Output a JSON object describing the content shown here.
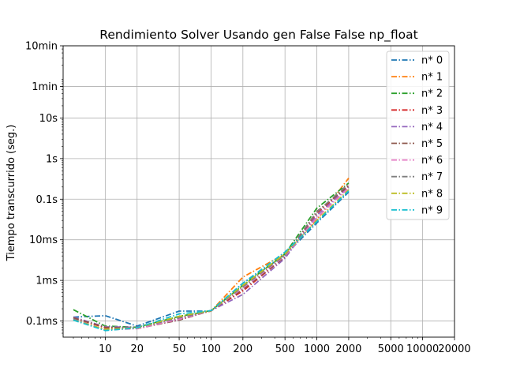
{
  "chart_data": {
    "type": "line",
    "title": "Rendimiento  Solver Usando gen False False np_float",
    "xlabel": "",
    "ylabel": "Tiempo transcurrido (seg.)",
    "x_scale": "log",
    "y_scale": "log",
    "xlim": [
      4,
      20000
    ],
    "ylim": [
      4e-05,
      600
    ],
    "grid": true,
    "legend_position": "top-right",
    "x_ticks": [
      {
        "value": 10,
        "label": "10"
      },
      {
        "value": 20,
        "label": "20"
      },
      {
        "value": 50,
        "label": "50"
      },
      {
        "value": 100,
        "label": "100"
      },
      {
        "value": 200,
        "label": "200"
      },
      {
        "value": 500,
        "label": "500"
      },
      {
        "value": 1000,
        "label": "1000"
      },
      {
        "value": 2000,
        "label": "2000"
      },
      {
        "value": 5000,
        "label": "5000"
      },
      {
        "value": 10000,
        "label": "10000"
      },
      {
        "value": 20000,
        "label": "20000"
      }
    ],
    "y_ticks": [
      {
        "value": 0.0001,
        "label": "0.1ms"
      },
      {
        "value": 0.001,
        "label": "1ms"
      },
      {
        "value": 0.01,
        "label": "10ms"
      },
      {
        "value": 0.1,
        "label": "0.1s"
      },
      {
        "value": 1,
        "label": "1s"
      },
      {
        "value": 10,
        "label": "10s"
      },
      {
        "value": 60,
        "label": "1min"
      },
      {
        "value": 600,
        "label": "10min"
      }
    ],
    "x": [
      5,
      10,
      20,
      50,
      100,
      200,
      500,
      1000,
      2000
    ],
    "series": [
      {
        "name": "n* 0",
        "color": "#1f77b4",
        "values": [
          0.000125,
          0.000135,
          7.5e-05,
          0.000175,
          0.000175,
          0.00085,
          0.0042,
          0.026,
          0.15
        ]
      },
      {
        "name": "n* 1",
        "color": "#ff7f0e",
        "values": [
          0.00012,
          6.8e-05,
          6.8e-05,
          0.00012,
          0.000175,
          0.0012,
          0.0045,
          0.031,
          0.33
        ]
      },
      {
        "name": "n* 2",
        "color": "#2ca02c",
        "values": [
          0.00019,
          7.5e-05,
          7e-05,
          0.00013,
          0.00018,
          0.00075,
          0.0045,
          0.06,
          0.25
        ]
      },
      {
        "name": "n* 3",
        "color": "#d62728",
        "values": [
          0.00012,
          6.8e-05,
          6.8e-05,
          0.00011,
          0.00018,
          0.00055,
          0.0038,
          0.045,
          0.22
        ]
      },
      {
        "name": "n* 4",
        "color": "#9467bd",
        "values": [
          0.000125,
          7.2e-05,
          7e-05,
          0.00011,
          0.00018,
          0.00045,
          0.0035,
          0.04,
          0.2
        ]
      },
      {
        "name": "n* 5",
        "color": "#8c564b",
        "values": [
          0.00012,
          7e-05,
          6.5e-05,
          0.000105,
          0.00018,
          0.0006,
          0.0038,
          0.05,
          0.21
        ]
      },
      {
        "name": "n* 6",
        "color": "#e377c2",
        "values": [
          0.00011,
          6e-05,
          6.5e-05,
          0.00011,
          0.00018,
          0.00065,
          0.004,
          0.035,
          0.19
        ]
      },
      {
        "name": "n* 7",
        "color": "#7f7f7f",
        "values": [
          0.00011,
          6e-05,
          6.8e-05,
          0.00012,
          0.00018,
          0.0007,
          0.0042,
          0.048,
          0.24
        ]
      },
      {
        "name": "n* 8",
        "color": "#bcbd22",
        "values": [
          0.000105,
          6.2e-05,
          6.8e-05,
          0.00013,
          0.00018,
          0.00075,
          0.0045,
          0.03,
          0.17
        ]
      },
      {
        "name": "n* 9",
        "color": "#17becf",
        "values": [
          0.000105,
          5.8e-05,
          6.8e-05,
          0.00015,
          0.00018,
          0.00085,
          0.005,
          0.028,
          0.16
        ]
      }
    ]
  }
}
